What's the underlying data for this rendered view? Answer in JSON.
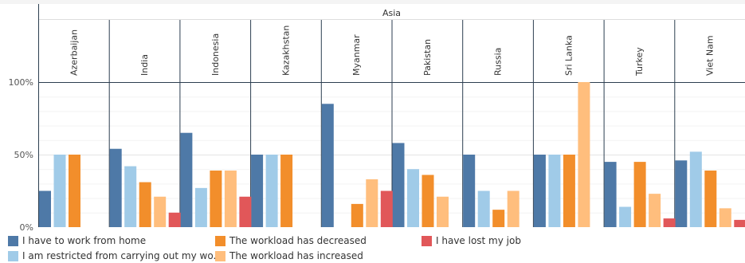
{
  "chart_data": {
    "type": "bar",
    "group_header": "Asia",
    "categories": [
      "Azerbaijan",
      "India",
      "Indonesia",
      "Kazakhstan",
      "Myanmar",
      "Pakistan",
      "Russia",
      "Sri Lanka",
      "Turkey",
      "Viet Nam"
    ],
    "y_ticks": [
      "0%",
      "50%",
      "100%"
    ],
    "ylim": [
      0,
      100
    ],
    "grid": true,
    "legend_position": "bottom",
    "series": [
      {
        "name": "I have to work from home",
        "color": "#4e79a7",
        "values": [
          25,
          54,
          65,
          50,
          85,
          58,
          50,
          50,
          45,
          46
        ]
      },
      {
        "name": "I am restricted from carrying out my wo..",
        "color": "#a0cbe8",
        "values": [
          50,
          42,
          27,
          50,
          0,
          40,
          25,
          50,
          14,
          52
        ]
      },
      {
        "name": "The workload has decreased",
        "color": "#f28e2b",
        "values": [
          50,
          31,
          39,
          50,
          16,
          36,
          12,
          50,
          45,
          39
        ]
      },
      {
        "name": "The workload has increased",
        "color": "#ffbe7d",
        "values": [
          0,
          21,
          39,
          0,
          33,
          21,
          25,
          100,
          23,
          13
        ]
      },
      {
        "name": "I have lost my job",
        "color": "#e15759",
        "values": [
          0,
          10,
          21,
          0,
          25,
          0,
          0,
          0,
          6,
          5
        ]
      }
    ]
  }
}
